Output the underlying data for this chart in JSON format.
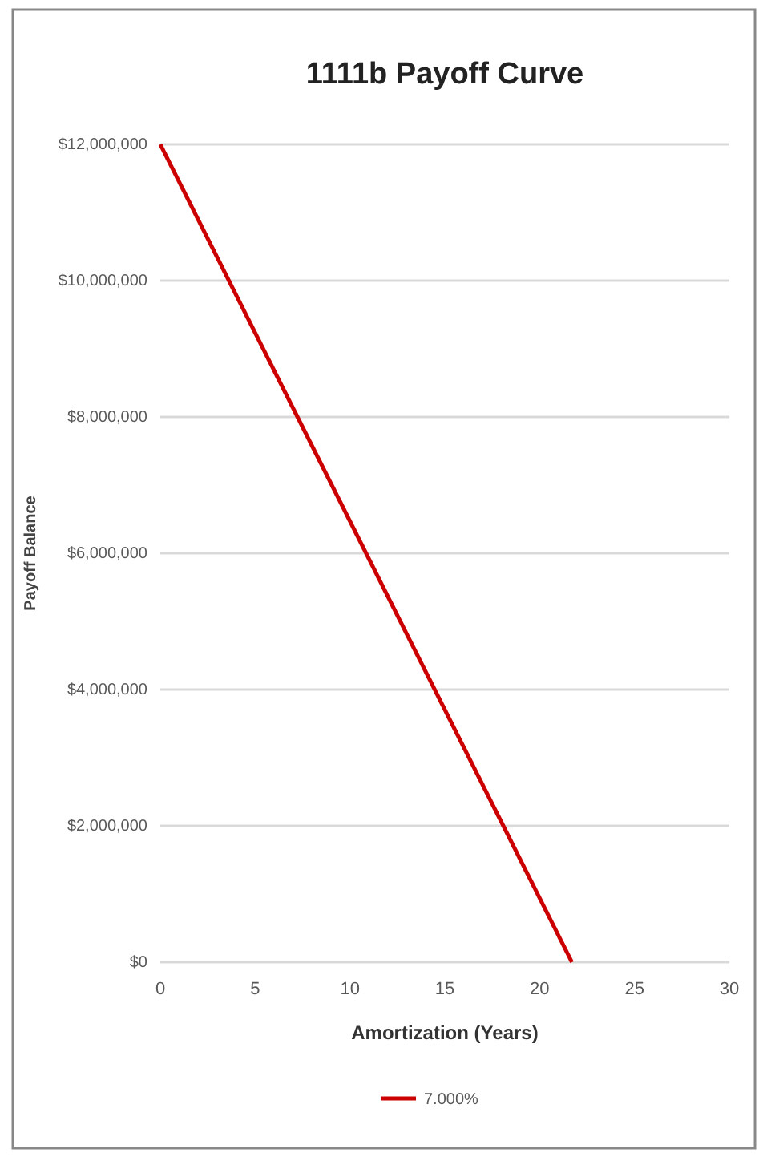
{
  "chart_data": {
    "type": "line",
    "title": "1111b Payoff Curve",
    "xlabel": "Amortization (Years)",
    "ylabel": "Payoff Balance",
    "x": [
      0,
      21.7
    ],
    "series": [
      {
        "name": "7.000%",
        "color": "#cc0000",
        "values": [
          12000000,
          0
        ]
      }
    ],
    "xlim": [
      0,
      30
    ],
    "xticks": [
      0,
      5,
      10,
      15,
      20,
      25,
      30
    ],
    "ylim": [
      0,
      12000000
    ],
    "yticks": [
      {
        "value": 0,
        "label": "$0"
      },
      {
        "value": 2000000,
        "label": "$2,000,000"
      },
      {
        "value": 4000000,
        "label": "$4,000,000"
      },
      {
        "value": 6000000,
        "label": "$6,000,000"
      },
      {
        "value": 8000000,
        "label": "$8,000,000"
      },
      {
        "value": 10000000,
        "label": "$10,000,000"
      },
      {
        "value": 12000000,
        "label": "$12,000,000"
      }
    ],
    "grid": "y",
    "legend": "bottom",
    "marker": "none",
    "line_style": "solid"
  }
}
